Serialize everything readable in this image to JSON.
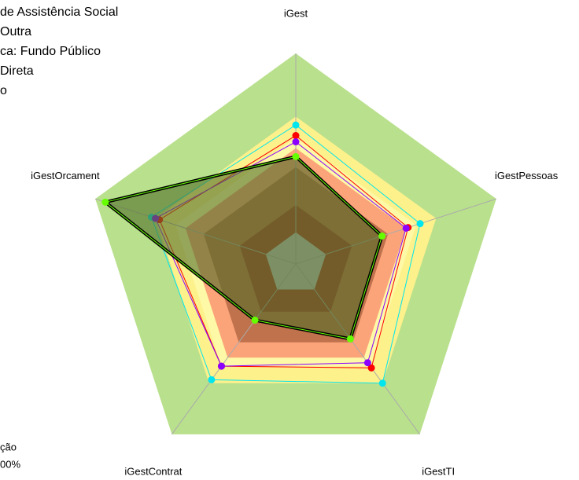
{
  "chart_data": {
    "type": "radar",
    "axes": [
      "iGest",
      "iGestPessoas",
      "iGestTI",
      "iGestContrat",
      "iGestOrcament"
    ],
    "rlim": [
      0,
      1
    ],
    "bands": [
      {
        "limit": 1.0,
        "color": "#b9e08d"
      },
      {
        "limit": 0.7,
        "color": "#fdf18b"
      },
      {
        "limit": 0.6,
        "color": "#fef9a6"
      },
      {
        "limit": 0.55,
        "color": "#fba47a"
      },
      {
        "limit": 0.46,
        "color": "#c0724c"
      },
      {
        "limit": 0.28,
        "color": "#a8432d"
      },
      {
        "limit": 0.15,
        "color": "#c0c0c0"
      }
    ],
    "series": [
      {
        "color": "#00e5ee",
        "values": [
          0.66,
          0.62,
          0.7,
          0.68,
          0.72
        ]
      },
      {
        "color": "#ff0000",
        "values": [
          0.61,
          0.56,
          0.61,
          0.6,
          0.68
        ]
      },
      {
        "color": "#8b00ff",
        "values": [
          0.58,
          0.55,
          0.58,
          0.6,
          0.7
        ]
      },
      {
        "color": "#66ff00",
        "line": "#000000",
        "fill": "rgba(80,110,40,0.6)",
        "values": [
          0.51,
          0.43,
          0.44,
          0.33,
          0.95
        ]
      }
    ],
    "legend_top": [
      "de Assistência Social",
      "Outra",
      "ca: Fundo Público",
      "Direta",
      "o"
    ],
    "legend_bottom": [
      "ção",
      "00%"
    ]
  }
}
